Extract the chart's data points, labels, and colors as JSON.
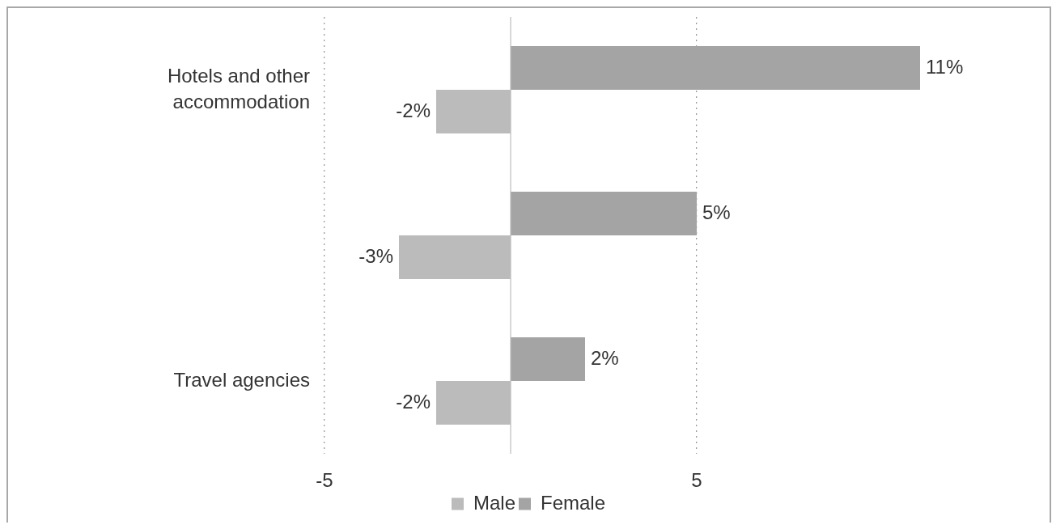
{
  "chart_data": {
    "type": "bar",
    "orientation": "horizontal",
    "categories": [
      "Hotels and other accommodation",
      null,
      "Travel agencies"
    ],
    "series": [
      {
        "name": "Male",
        "color": "#bbbbbb",
        "values": [
          -2,
          -3,
          -2
        ],
        "value_labels": [
          "-2%",
          "-3%",
          "-2%"
        ]
      },
      {
        "name": "Female",
        "color": "#a4a4a4",
        "values": [
          11,
          5,
          2
        ],
        "value_labels": [
          "11%",
          "5%",
          "2%"
        ]
      }
    ],
    "xlim": [
      -5,
      14.5
    ],
    "xticks": [
      -5,
      5
    ],
    "grid": "x",
    "legend": "bottom",
    "ref_lines": [
      {
        "axis": "x",
        "value": 0,
        "color": "#bdbdbd"
      }
    ]
  }
}
